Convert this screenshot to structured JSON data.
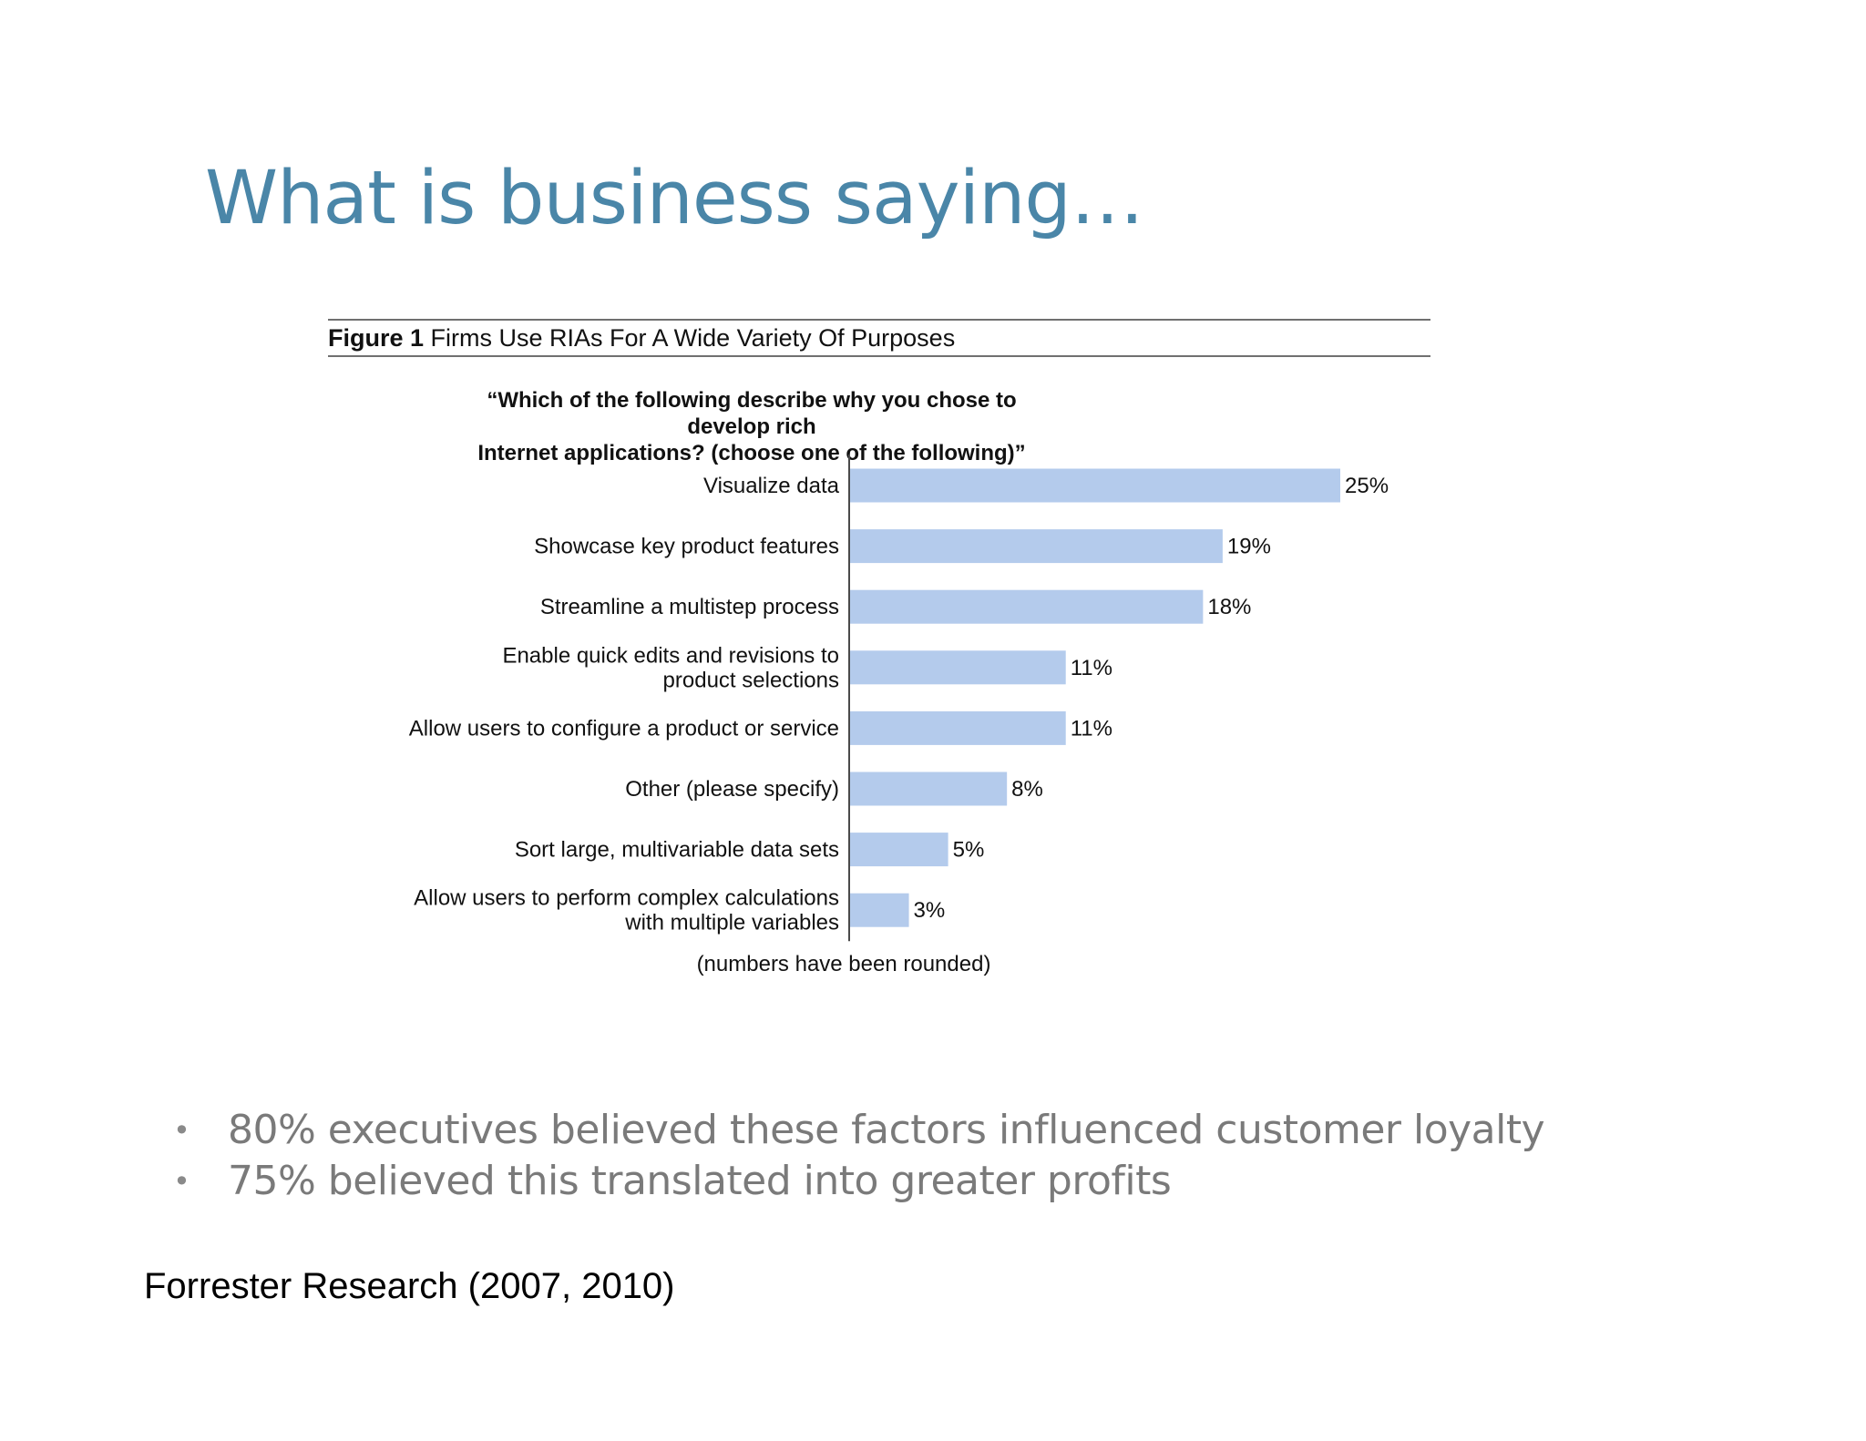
{
  "slide": {
    "title": "What is business saying…",
    "bullets": [
      "80% executives believed these factors influenced customer loyalty",
      "75% believed this translated into greater profits"
    ],
    "source": "Forrester Research (2007, 2010)"
  },
  "figure": {
    "number": "Figure 1",
    "caption": "Firms Use RIAs For A Wide Variety Of Purposes",
    "question_line1": "“Which of the following describe why you chose to develop rich",
    "question_line2": "Internet applications? (choose one of the following)”",
    "note": "(numbers have been rounded)"
  },
  "chart_data": {
    "type": "bar",
    "orientation": "horizontal",
    "categories": [
      [
        "Visualize data"
      ],
      [
        "Showcase key product features"
      ],
      [
        "Streamline a multistep process"
      ],
      [
        "Enable quick edits and revisions to",
        "product selections"
      ],
      [
        "Allow users to configure a product or service"
      ],
      [
        "Other (please specify)"
      ],
      [
        "Sort large, multivariable data sets"
      ],
      [
        "Allow users to perform complex calculations",
        "with multiple variables"
      ]
    ],
    "values": [
      25,
      19,
      18,
      11,
      11,
      8,
      5,
      3
    ],
    "value_labels": [
      "25%",
      "19%",
      "18%",
      "11%",
      "11%",
      "8%",
      "5%",
      "3%"
    ],
    "title": "Firms Use RIAs For A Wide Variety Of Purposes",
    "xlabel": "",
    "ylabel": "",
    "xlim": [
      0,
      25
    ],
    "grid": false,
    "bar_color": "#b4cbec"
  }
}
